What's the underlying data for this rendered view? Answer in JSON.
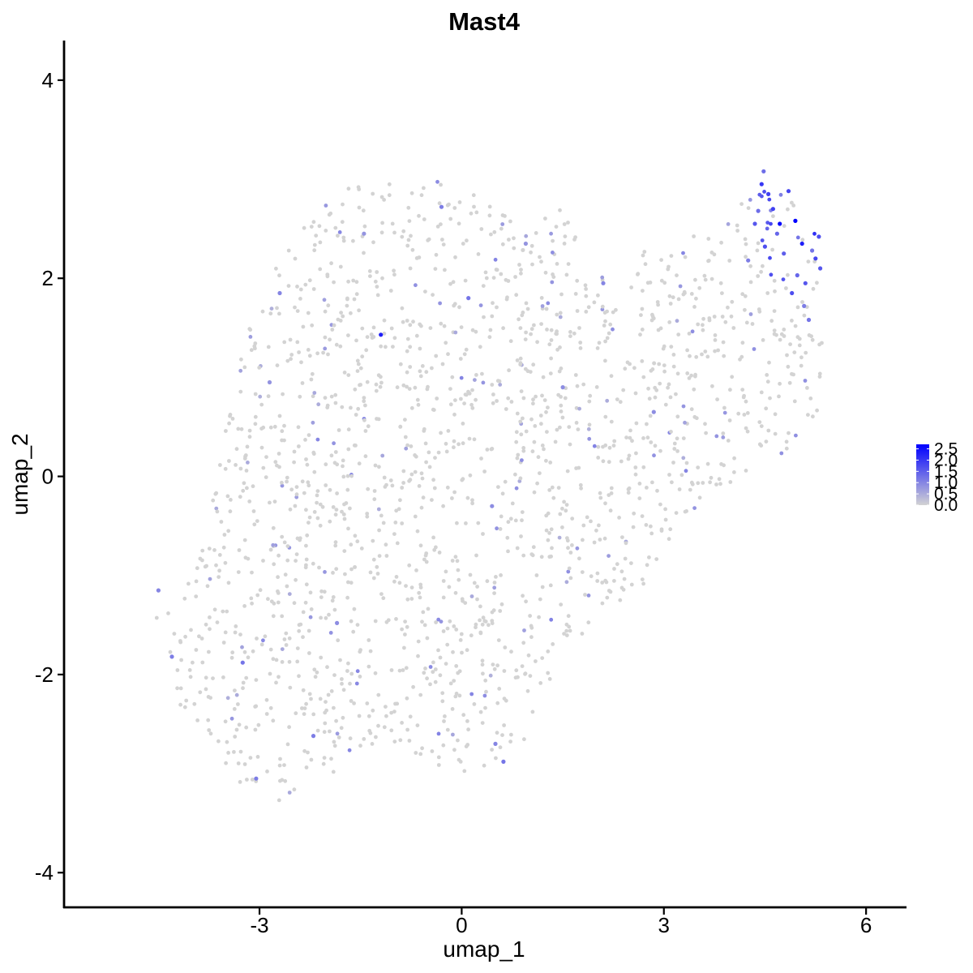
{
  "chart_data": {
    "type": "scatter",
    "title": "Mast4",
    "xlabel": "umap_1",
    "ylabel": "umap_2",
    "xlim": [
      -5.9,
      6.6
    ],
    "ylim": [
      -4.35,
      4.4
    ],
    "x_ticks": [
      -3,
      0,
      3,
      6
    ],
    "x_tick_labels": [
      "-3",
      "0",
      "3",
      "6"
    ],
    "y_ticks": [
      -4,
      -2,
      0,
      2,
      4
    ],
    "y_tick_labels": [
      "-4",
      "-2",
      "0",
      "2",
      "4"
    ],
    "grid": false,
    "legend": {
      "placement": "right",
      "title": "",
      "values": [
        0.0,
        0.5,
        1.0,
        1.5,
        2.0,
        2.5
      ],
      "labels": [
        "0.0",
        "0.5",
        "1.0",
        "1.5",
        "2.0",
        "2.5"
      ],
      "low_color": "#d3d3d3",
      "high_color": "#0000ff"
    },
    "color_scale": {
      "min": 0.0,
      "max": 2.7,
      "low": "#d3d3d3",
      "high": "#0000ff"
    },
    "point_count_approx": 1800,
    "series": [
      {
        "values": [
          {
            "x": 4.95,
            "y": 2.58,
            "expr": 2.7
          },
          {
            "x": 4.72,
            "y": 2.55,
            "expr": 2.6
          },
          {
            "x": 5.05,
            "y": 2.35,
            "expr": 2.3
          },
          {
            "x": 4.45,
            "y": 2.95,
            "expr": 2.0
          },
          {
            "x": 4.55,
            "y": 2.85,
            "expr": 1.9
          },
          {
            "x": 4.62,
            "y": 2.7,
            "expr": 1.9
          },
          {
            "x": 4.85,
            "y": 2.88,
            "expr": 1.8
          },
          {
            "x": 5.25,
            "y": 2.2,
            "expr": 1.8
          },
          {
            "x": 5.3,
            "y": 2.42,
            "expr": 1.7
          },
          {
            "x": 4.9,
            "y": 1.85,
            "expr": 1.7
          },
          {
            "x": 4.5,
            "y": 2.32,
            "expr": 1.7
          },
          {
            "x": 5.1,
            "y": 1.95,
            "expr": 1.6
          },
          {
            "x": 4.35,
            "y": 2.55,
            "expr": 1.6
          },
          {
            "x": 4.78,
            "y": 2.25,
            "expr": 1.5
          },
          {
            "x": 5.32,
            "y": 2.1,
            "expr": 1.6
          },
          {
            "x": 4.48,
            "y": 3.08,
            "expr": 1.3
          },
          {
            "x": 4.98,
            "y": 2.03,
            "expr": 1.4
          },
          {
            "x": 5.15,
            "y": 1.58,
            "expr": 1.2
          },
          {
            "x": 4.68,
            "y": 2.45,
            "expr": 1.4
          },
          {
            "x": 4.4,
            "y": 2.68,
            "expr": 1.3
          },
          {
            "x": 5.2,
            "y": 2.28,
            "expr": 1.2
          },
          {
            "x": 4.25,
            "y": 2.18,
            "expr": 1.1
          },
          {
            "x": 5.08,
            "y": 1.72,
            "expr": 1.1
          },
          {
            "x": -1.2,
            "y": 1.43,
            "expr": 2.3
          },
          {
            "x": -4.5,
            "y": -1.15,
            "expr": 1.0
          },
          {
            "x": -4.3,
            "y": -1.82,
            "expr": 1.1
          },
          {
            "x": -3.25,
            "y": -1.88,
            "expr": 1.2
          },
          {
            "x": -2.2,
            "y": -2.62,
            "expr": 1.1
          },
          {
            "x": -3.05,
            "y": -3.05,
            "expr": 1.1
          },
          {
            "x": -0.3,
            "y": 2.72,
            "expr": 1.1
          },
          {
            "x": 0.1,
            "y": 1.8,
            "expr": 1.2
          },
          {
            "x": -2.7,
            "y": 1.85,
            "expr": 1.0
          },
          {
            "x": 0.62,
            "y": -2.88,
            "expr": 1.2
          },
          {
            "x": 0.5,
            "y": -2.7,
            "expr": 1.0
          },
          {
            "x": 2.1,
            "y": 1.95,
            "expr": 1.0
          },
          {
            "x": 2.85,
            "y": 0.65,
            "expr": 0.9
          },
          {
            "x": 1.5,
            "y": 0.9,
            "expr": 0.9
          },
          {
            "x": 0.45,
            "y": -0.3,
            "expr": 0.9
          },
          {
            "x": -1.85,
            "y": -1.48,
            "expr": 0.9
          },
          {
            "x": -2.85,
            "y": 0.95,
            "expr": 0.8
          },
          {
            "x": -1.45,
            "y": 2.45,
            "expr": 0.8
          },
          {
            "x": 0.95,
            "y": 2.35,
            "expr": 0.8
          }
        ]
      }
    ]
  }
}
